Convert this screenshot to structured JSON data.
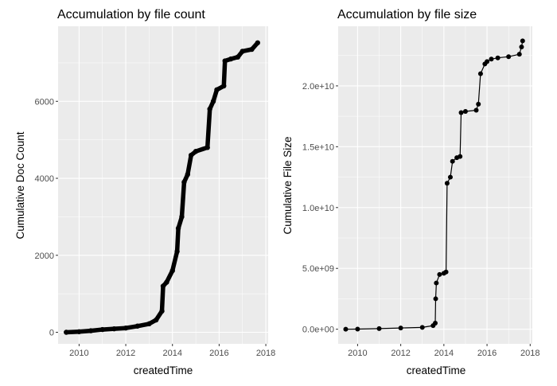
{
  "chart_data": [
    {
      "type": "line",
      "title": "Accumulation by file count",
      "xlabel": "createdTime",
      "ylabel": "Cumulative Doc Count",
      "xlim": [
        2009.1,
        2018.1
      ],
      "ylim": [
        -300,
        7950
      ],
      "x_ticks": [
        2010,
        2012,
        2014,
        2016,
        2018
      ],
      "x_tick_labels": [
        "2010",
        "2012",
        "2014",
        "2016",
        "2018"
      ],
      "y_ticks": [
        0,
        2000,
        4000,
        6000
      ],
      "y_tick_labels": [
        "0",
        "2000",
        "4000",
        "6000"
      ],
      "grid": true,
      "legend": "none",
      "series": [
        {
          "points": [
            [
              2009.45,
              0
            ],
            [
              2010.0,
              15
            ],
            [
              2010.5,
              40
            ],
            [
              2011.0,
              70
            ],
            [
              2011.5,
              90
            ],
            [
              2012.0,
              110
            ],
            [
              2012.5,
              160
            ],
            [
              2013.0,
              220
            ],
            [
              2013.3,
              320
            ],
            [
              2013.55,
              550
            ],
            [
              2013.6,
              1200
            ],
            [
              2013.75,
              1300
            ],
            [
              2014.0,
              1600
            ],
            [
              2014.2,
              2100
            ],
            [
              2014.25,
              2700
            ],
            [
              2014.4,
              3000
            ],
            [
              2014.5,
              3900
            ],
            [
              2014.65,
              4100
            ],
            [
              2014.8,
              4600
            ],
            [
              2015.0,
              4700
            ],
            [
              2015.5,
              4800
            ],
            [
              2015.6,
              5800
            ],
            [
              2015.75,
              6000
            ],
            [
              2015.9,
              6300
            ],
            [
              2016.2,
              6400
            ],
            [
              2016.25,
              7050
            ],
            [
              2016.5,
              7100
            ],
            [
              2016.8,
              7150
            ],
            [
              2017.0,
              7300
            ],
            [
              2017.4,
              7350
            ],
            [
              2017.65,
              7520
            ]
          ]
        }
      ]
    },
    {
      "type": "line",
      "title": "Accumulation by file size",
      "xlabel": "createdTime",
      "ylabel": "Cumulative File Size",
      "xlim": [
        2009.1,
        2018.1
      ],
      "ylim": [
        -1200000000,
        24900000000
      ],
      "x_ticks": [
        2010,
        2012,
        2014,
        2016,
        2018
      ],
      "x_tick_labels": [
        "2010",
        "2012",
        "2014",
        "2016",
        "2018"
      ],
      "y_ticks": [
        0,
        5000000000,
        10000000000,
        15000000000,
        20000000000
      ],
      "y_tick_labels": [
        "0.0e+00",
        "5.0e+09",
        "1.0e+10",
        "1.5e+10",
        "2.0e+10"
      ],
      "grid": true,
      "legend": "none",
      "series": [
        {
          "points": [
            [
              2009.45,
              0
            ],
            [
              2010.0,
              10000000
            ],
            [
              2011.0,
              50000000
            ],
            [
              2012.0,
              100000000
            ],
            [
              2013.0,
              150000000
            ],
            [
              2013.5,
              300000000
            ],
            [
              2013.6,
              500000000
            ],
            [
              2013.62,
              2500000000
            ],
            [
              2013.65,
              3800000000
            ],
            [
              2013.8,
              4500000000
            ],
            [
              2014.0,
              4600000000
            ],
            [
              2014.1,
              4700000000
            ],
            [
              2014.15,
              12000000000
            ],
            [
              2014.3,
              12500000000
            ],
            [
              2014.4,
              13800000000
            ],
            [
              2014.6,
              14100000000
            ],
            [
              2014.75,
              14200000000
            ],
            [
              2014.8,
              17800000000
            ],
            [
              2015.0,
              17900000000
            ],
            [
              2015.5,
              18000000000
            ],
            [
              2015.6,
              18500000000
            ],
            [
              2015.7,
              21000000000
            ],
            [
              2015.9,
              21800000000
            ],
            [
              2016.0,
              22000000000
            ],
            [
              2016.2,
              22200000000
            ],
            [
              2016.5,
              22300000000
            ],
            [
              2017.0,
              22400000000
            ],
            [
              2017.5,
              22600000000
            ],
            [
              2017.6,
              23200000000
            ],
            [
              2017.65,
              23700000000
            ]
          ]
        }
      ]
    }
  ]
}
